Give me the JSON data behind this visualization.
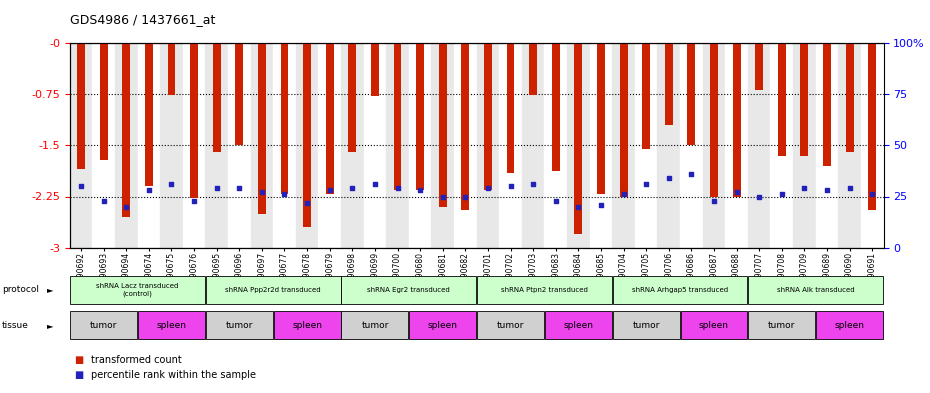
{
  "title": "GDS4986 / 1437661_at",
  "samples": [
    "GSM1290692",
    "GSM1290693",
    "GSM1290694",
    "GSM1290674",
    "GSM1290675",
    "GSM1290676",
    "GSM1290695",
    "GSM1290696",
    "GSM1290697",
    "GSM1290677",
    "GSM1290678",
    "GSM1290679",
    "GSM1290698",
    "GSM1290699",
    "GSM1290700",
    "GSM1290680",
    "GSM1290681",
    "GSM1290682",
    "GSM1290701",
    "GSM1290702",
    "GSM1290703",
    "GSM1290683",
    "GSM1290684",
    "GSM1290685",
    "GSM1290704",
    "GSM1290705",
    "GSM1290706",
    "GSM1290686",
    "GSM1290687",
    "GSM1290688",
    "GSM1290707",
    "GSM1290708",
    "GSM1290709",
    "GSM1290689",
    "GSM1290690",
    "GSM1290691"
  ],
  "red_values": [
    -1.85,
    -1.72,
    -2.55,
    -2.1,
    -0.76,
    -2.27,
    -1.6,
    -1.5,
    -2.5,
    -2.22,
    -2.7,
    -2.22,
    -1.6,
    -0.78,
    -2.15,
    -2.15,
    -2.4,
    -2.45,
    -2.15,
    -1.9,
    -0.76,
    -1.87,
    -2.8,
    -2.22,
    -2.25,
    -1.55,
    -1.2,
    -1.5,
    -2.25,
    -2.25,
    -0.68,
    -1.65,
    -1.65,
    -1.8,
    -1.6,
    -2.45
  ],
  "blue_percentiles": [
    30,
    23,
    20,
    28,
    31,
    23,
    29,
    29,
    27,
    26,
    22,
    28,
    29,
    31,
    29,
    28,
    25,
    25,
    29,
    30,
    31,
    23,
    20,
    21,
    26,
    31,
    34,
    36,
    23,
    27,
    25,
    26,
    29,
    28,
    29,
    26
  ],
  "protocols": [
    {
      "label": "shRNA Lacz transduced\n(control)",
      "start": 0,
      "end": 5,
      "color": "#ccffcc"
    },
    {
      "label": "shRNA Ppp2r2d transduced",
      "start": 6,
      "end": 11,
      "color": "#ccffcc"
    },
    {
      "label": "shRNA Egr2 transduced",
      "start": 12,
      "end": 17,
      "color": "#ccffcc"
    },
    {
      "label": "shRNA Ptpn2 transduced",
      "start": 18,
      "end": 23,
      "color": "#ccffcc"
    },
    {
      "label": "shRNA Arhgap5 transduced",
      "start": 24,
      "end": 29,
      "color": "#ccffcc"
    },
    {
      "label": "shRNA Alk transduced",
      "start": 30,
      "end": 35,
      "color": "#ccffcc"
    }
  ],
  "tissues": [
    {
      "label": "tumor",
      "start": 0,
      "end": 2,
      "color": "#d0d0d0"
    },
    {
      "label": "spleen",
      "start": 3,
      "end": 5,
      "color": "#ee44ee"
    },
    {
      "label": "tumor",
      "start": 6,
      "end": 8,
      "color": "#d0d0d0"
    },
    {
      "label": "spleen",
      "start": 9,
      "end": 11,
      "color": "#ee44ee"
    },
    {
      "label": "tumor",
      "start": 12,
      "end": 14,
      "color": "#d0d0d0"
    },
    {
      "label": "spleen",
      "start": 15,
      "end": 17,
      "color": "#ee44ee"
    },
    {
      "label": "tumor",
      "start": 18,
      "end": 20,
      "color": "#d0d0d0"
    },
    {
      "label": "spleen",
      "start": 21,
      "end": 23,
      "color": "#ee44ee"
    },
    {
      "label": "tumor",
      "start": 24,
      "end": 26,
      "color": "#d0d0d0"
    },
    {
      "label": "spleen",
      "start": 27,
      "end": 29,
      "color": "#ee44ee"
    },
    {
      "label": "tumor",
      "start": 30,
      "end": 32,
      "color": "#d0d0d0"
    },
    {
      "label": "spleen",
      "start": 33,
      "end": 35,
      "color": "#ee44ee"
    }
  ],
  "ylim_left": [
    -3.0,
    0.0
  ],
  "ylim_right": [
    0,
    100
  ],
  "yticks_left": [
    0.0,
    -0.75,
    -1.5,
    -2.25,
    -3.0
  ],
  "yticks_left_labels": [
    "-0",
    "-0.75",
    "-1.5",
    "-2.25",
    "-3"
  ],
  "yticks_right": [
    100,
    75,
    50,
    25,
    0
  ],
  "yticks_right_labels": [
    "100%",
    "75",
    "50",
    "25",
    "0"
  ],
  "hlines": [
    -0.75,
    -1.5,
    -2.25
  ],
  "bar_color": "#cc2200",
  "dot_color": "#2222bb",
  "background_color": "#ffffff",
  "col_bg_odd": "#e8e8e8",
  "col_bg_even": "#ffffff"
}
